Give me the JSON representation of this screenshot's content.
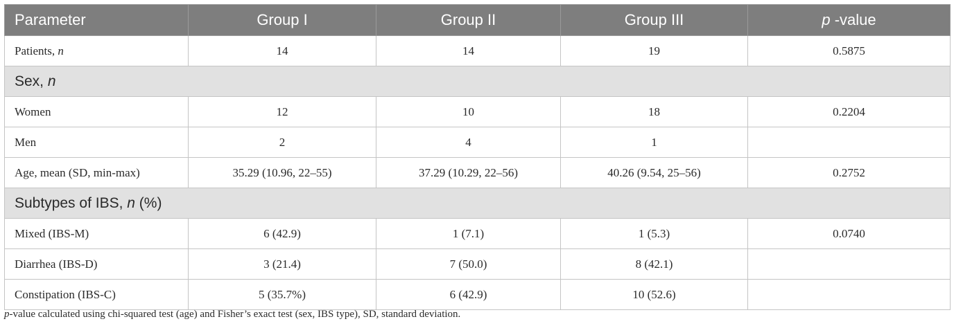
{
  "header": {
    "parameter": "Parameter",
    "group1": "Group I",
    "group2": "Group II",
    "group3": "Group III",
    "pvalue_p": "p",
    "pvalue_rest": " -value"
  },
  "rows": {
    "patients": {
      "label": "Patients, ",
      "label_italic": "n",
      "g1": "14",
      "g2": "14",
      "g3": "19",
      "p": "0.5875"
    },
    "sex_section": {
      "label": "Sex, ",
      "label_italic": "n"
    },
    "women": {
      "label": "Women",
      "g1": "12",
      "g2": "10",
      "g3": "18",
      "p": "0.2204"
    },
    "men": {
      "label": "Men",
      "g1": "2",
      "g2": "4",
      "g3": "1",
      "p": ""
    },
    "age": {
      "label": "Age, mean (SD, min-max)",
      "g1": "35.29 (10.96, 22–55)",
      "g2": "37.29 (10.29, 22–56)",
      "g3": "40.26 (9.54, 25–56)",
      "p": "0.2752"
    },
    "ibs_section": {
      "label": "Subtypes of IBS, ",
      "label_italic": "n",
      "label_tail": " (%)"
    },
    "mixed": {
      "label": "Mixed (IBS-M)",
      "g1": "6 (42.9)",
      "g2": "1 (7.1)",
      "g3": "1 (5.3)",
      "p": "0.0740"
    },
    "diarrhea": {
      "label": "Diarrhea (IBS-D)",
      "g1": "3 (21.4)",
      "g2": "7 (50.0)",
      "g3": "8 (42.1)",
      "p": ""
    },
    "constipation": {
      "label": "Constipation (IBS-C)",
      "g1": "5 (35.7%)",
      "g2": "6 (42.9)",
      "g3": "10 (52.6)",
      "p": ""
    }
  },
  "footnote": {
    "p": "p",
    "text": "-value calculated using chi-squared test (age) and Fisher’s exact test (sex, IBS type), SD, standard deviation."
  }
}
